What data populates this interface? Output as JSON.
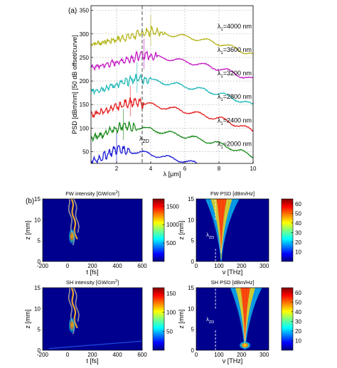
{
  "figure": {
    "panel_a_label": "(a)",
    "panel_b_label": "(b)"
  },
  "chart_data": [
    {
      "type": "line",
      "xlabel": "λ [μm]",
      "ylabel": "PSD [dBm/nm] [50 dB offset/curve]",
      "xlim": [
        0.5,
        10
      ],
      "ylim": [
        25,
        360
      ],
      "x_ticks": [
        2,
        4,
        6,
        8,
        10
      ],
      "y_ticks": [
        50,
        100,
        150,
        200,
        250,
        300,
        350
      ],
      "grid": true,
      "zd_marker": {
        "label_main": "λ",
        "label_sub": "ZD",
        "x": 3.5
      },
      "series": [
        {
          "name_main": "λ",
          "name_sub": "1",
          "name_rest": "=4000 nm",
          "color": "#b5b51e",
          "offset": 300,
          "pump": 4.0
        },
        {
          "name_main": "λ",
          "name_sub": "1",
          "name_rest": "=3600 nm",
          "color": "#c31ac3",
          "offset": 250,
          "pump": 3.6
        },
        {
          "name_main": "λ",
          "name_sub": "1",
          "name_rest": "=3200 nm",
          "color": "#1fb8b8",
          "offset": 200,
          "pump": 3.2
        },
        {
          "name_main": "λ",
          "name_sub": "1",
          "name_rest": "=2800 nm",
          "color": "#e62020",
          "offset": 150,
          "pump": 2.8
        },
        {
          "name_main": "λ",
          "name_sub": "1",
          "name_rest": "=2400 nm",
          "color": "#1a8a1a",
          "offset": 100,
          "pump": 2.4
        },
        {
          "name_main": "λ",
          "name_sub": "1",
          "name_rest": "=2000 nm",
          "color": "#1a1ad6",
          "offset": 50,
          "pump": 2.0
        }
      ]
    },
    {
      "type": "heatmap",
      "title_pre": "FW intensity [GW/cm",
      "title_sup": "2",
      "title_post": "]",
      "xlabel": "t [fs]",
      "ylabel": "z [mm]",
      "xlim": [
        -200,
        600
      ],
      "ylim": [
        0,
        15
      ],
      "x_ticks": [
        -200,
        0,
        200,
        400,
        600
      ],
      "y_ticks": [
        0,
        5,
        10,
        15
      ],
      "colorbar_ticks": [
        500,
        1000,
        1500
      ],
      "colorbar_range": [
        0,
        1700
      ]
    },
    {
      "type": "heatmap",
      "title_pre": "FW PSD [dBm/Hz]",
      "xlabel": "ν [THz]",
      "ylabel": "z [mm]",
      "xlim": [
        0,
        320
      ],
      "ylim": [
        0,
        15
      ],
      "x_ticks": [
        0,
        100,
        200,
        300
      ],
      "y_ticks": [
        0,
        5,
        10,
        15
      ],
      "colorbar_ticks": [
        10,
        20,
        30,
        40,
        50,
        60
      ],
      "colorbar_range": [
        0,
        65
      ],
      "zd_marker": {
        "label_main": "λ",
        "label_sub": "ZD",
        "x": 85
      }
    },
    {
      "type": "heatmap",
      "title_pre": "SH intensity [GW/cm",
      "title_sup": "2",
      "title_post": "]",
      "xlabel": "t [fs]",
      "ylabel": "z [mm]",
      "xlim": [
        -200,
        600
      ],
      "ylim": [
        0,
        15
      ],
      "x_ticks": [
        -200,
        0,
        200,
        400,
        600
      ],
      "y_ticks": [
        0,
        5,
        10,
        15
      ],
      "colorbar_ticks": [
        50,
        100,
        150
      ],
      "colorbar_range": [
        0,
        165
      ]
    },
    {
      "type": "heatmap",
      "title_pre": "SH PSD [dBm/Hz]",
      "xlabel": "ν [THz]",
      "ylabel": "z [mm]",
      "xlim": [
        0,
        320
      ],
      "ylim": [
        0,
        15
      ],
      "x_ticks": [
        0,
        100,
        200,
        300
      ],
      "y_ticks": [
        0,
        5,
        10,
        15
      ],
      "colorbar_ticks": [
        10,
        20,
        30,
        40,
        50,
        60
      ],
      "colorbar_range": [
        0,
        65
      ],
      "zd_marker": {
        "label_main": "λ",
        "label_sub": "ZD",
        "x": 85
      }
    }
  ]
}
